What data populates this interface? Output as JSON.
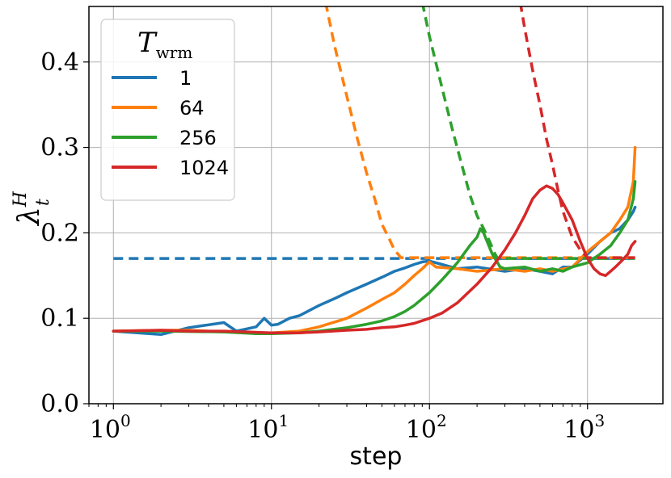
{
  "chart_data": {
    "type": "line",
    "xlabel": "step",
    "ylabel": {
      "base": "λ",
      "sup": "H",
      "sub": "t"
    },
    "x_scale": "log",
    "xlim": [
      0.7,
      3000
    ],
    "ylim": [
      0.0,
      0.465
    ],
    "x_ticks": [
      {
        "base": "10",
        "exp": "0"
      },
      {
        "base": "10",
        "exp": "1"
      },
      {
        "base": "10",
        "exp": "2"
      },
      {
        "base": "10",
        "exp": "3"
      }
    ],
    "y_ticks": [
      "0.0",
      "0.1",
      "0.2",
      "0.3",
      "0.4"
    ],
    "grid": true,
    "legend": {
      "title": {
        "main": "T",
        "sub": "wrm"
      },
      "placement": "top-left"
    },
    "series": [
      {
        "name": "1",
        "color": "#1f77b4",
        "points": [
          [
            1,
            0.085
          ],
          [
            2,
            0.081
          ],
          [
            3,
            0.089
          ],
          [
            5,
            0.095
          ],
          [
            6,
            0.085
          ],
          [
            8,
            0.09
          ],
          [
            9,
            0.1
          ],
          [
            10,
            0.092
          ],
          [
            11,
            0.093
          ],
          [
            13,
            0.1
          ],
          [
            15,
            0.103
          ],
          [
            20,
            0.115
          ],
          [
            25,
            0.123
          ],
          [
            30,
            0.13
          ],
          [
            40,
            0.14
          ],
          [
            50,
            0.148
          ],
          [
            60,
            0.155
          ],
          [
            70,
            0.159
          ],
          [
            80,
            0.163
          ],
          [
            90,
            0.166
          ],
          [
            100,
            0.167
          ],
          [
            120,
            0.163
          ],
          [
            150,
            0.158
          ],
          [
            200,
            0.16
          ],
          [
            300,
            0.155
          ],
          [
            400,
            0.158
          ],
          [
            500,
            0.155
          ],
          [
            600,
            0.152
          ],
          [
            700,
            0.16
          ],
          [
            800,
            0.16
          ],
          [
            900,
            0.168
          ],
          [
            1000,
            0.175
          ],
          [
            1200,
            0.19
          ],
          [
            1400,
            0.2
          ],
          [
            1600,
            0.205
          ],
          [
            1800,
            0.215
          ],
          [
            1950,
            0.225
          ],
          [
            2000,
            0.23
          ]
        ],
        "reference": {
          "style": "dashed",
          "points": [
            [
              1,
              0.17
            ],
            [
              2000,
              0.17
            ]
          ]
        }
      },
      {
        "name": "64",
        "color": "#ff7f0e",
        "points": [
          [
            1,
            0.085
          ],
          [
            2,
            0.086
          ],
          [
            3,
            0.086
          ],
          [
            5,
            0.084
          ],
          [
            8,
            0.083
          ],
          [
            10,
            0.083
          ],
          [
            15,
            0.085
          ],
          [
            20,
            0.09
          ],
          [
            30,
            0.1
          ],
          [
            40,
            0.112
          ],
          [
            50,
            0.122
          ],
          [
            60,
            0.13
          ],
          [
            70,
            0.14
          ],
          [
            80,
            0.15
          ],
          [
            90,
            0.158
          ],
          [
            100,
            0.166
          ],
          [
            110,
            0.16
          ],
          [
            150,
            0.158
          ],
          [
            200,
            0.155
          ],
          [
            300,
            0.158
          ],
          [
            400,
            0.155
          ],
          [
            500,
            0.158
          ],
          [
            600,
            0.155
          ],
          [
            800,
            0.16
          ],
          [
            1000,
            0.178
          ],
          [
            1200,
            0.19
          ],
          [
            1400,
            0.2
          ],
          [
            1600,
            0.215
          ],
          [
            1800,
            0.23
          ],
          [
            1950,
            0.26
          ],
          [
            2000,
            0.3
          ]
        ],
        "reference": {
          "style": "dashed",
          "points": [
            [
              22,
              0.47
            ],
            [
              25,
              0.42
            ],
            [
              30,
              0.36
            ],
            [
              35,
              0.31
            ],
            [
              40,
              0.27
            ],
            [
              45,
              0.24
            ],
            [
              50,
              0.21
            ],
            [
              55,
              0.195
            ],
            [
              60,
              0.18
            ],
            [
              66,
              0.171
            ],
            [
              2000,
              0.171
            ]
          ]
        }
      },
      {
        "name": "256",
        "color": "#2ca02c",
        "points": [
          [
            1,
            0.085
          ],
          [
            2,
            0.085
          ],
          [
            5,
            0.084
          ],
          [
            8,
            0.082
          ],
          [
            10,
            0.082
          ],
          [
            15,
            0.083
          ],
          [
            20,
            0.085
          ],
          [
            30,
            0.089
          ],
          [
            40,
            0.093
          ],
          [
            50,
            0.097
          ],
          [
            60,
            0.102
          ],
          [
            70,
            0.108
          ],
          [
            80,
            0.115
          ],
          [
            100,
            0.13
          ],
          [
            120,
            0.145
          ],
          [
            150,
            0.165
          ],
          [
            180,
            0.185
          ],
          [
            200,
            0.195
          ],
          [
            210,
            0.205
          ],
          [
            220,
            0.2
          ],
          [
            250,
            0.175
          ],
          [
            280,
            0.16
          ],
          [
            300,
            0.158
          ],
          [
            400,
            0.16
          ],
          [
            500,
            0.155
          ],
          [
            600,
            0.158
          ],
          [
            700,
            0.155
          ],
          [
            800,
            0.16
          ],
          [
            1000,
            0.165
          ],
          [
            1200,
            0.175
          ],
          [
            1400,
            0.185
          ],
          [
            1600,
            0.2
          ],
          [
            1800,
            0.215
          ],
          [
            1950,
            0.24
          ],
          [
            2000,
            0.26
          ]
        ],
        "reference": {
          "style": "dashed",
          "points": [
            [
              90,
              0.47
            ],
            [
              100,
              0.43
            ],
            [
              120,
              0.37
            ],
            [
              140,
              0.32
            ],
            [
              160,
              0.28
            ],
            [
              180,
              0.245
            ],
            [
              200,
              0.22
            ],
            [
              220,
              0.205
            ],
            [
              240,
              0.19
            ],
            [
              260,
              0.175
            ],
            [
              270,
              0.17
            ],
            [
              2000,
              0.17
            ]
          ]
        }
      },
      {
        "name": "1024",
        "color": "#d62728",
        "points": [
          [
            1,
            0.085
          ],
          [
            2,
            0.086
          ],
          [
            3,
            0.085
          ],
          [
            5,
            0.085
          ],
          [
            7,
            0.084
          ],
          [
            10,
            0.083
          ],
          [
            15,
            0.083
          ],
          [
            20,
            0.084
          ],
          [
            30,
            0.086
          ],
          [
            40,
            0.087
          ],
          [
            50,
            0.089
          ],
          [
            60,
            0.09
          ],
          [
            70,
            0.092
          ],
          [
            80,
            0.094
          ],
          [
            100,
            0.1
          ],
          [
            120,
            0.106
          ],
          [
            150,
            0.118
          ],
          [
            200,
            0.14
          ],
          [
            250,
            0.16
          ],
          [
            300,
            0.18
          ],
          [
            350,
            0.2
          ],
          [
            400,
            0.22
          ],
          [
            450,
            0.24
          ],
          [
            500,
            0.25
          ],
          [
            550,
            0.255
          ],
          [
            600,
            0.252
          ],
          [
            650,
            0.245
          ],
          [
            700,
            0.235
          ],
          [
            800,
            0.215
          ],
          [
            900,
            0.19
          ],
          [
            1000,
            0.17
          ],
          [
            1100,
            0.158
          ],
          [
            1200,
            0.152
          ],
          [
            1300,
            0.15
          ],
          [
            1400,
            0.155
          ],
          [
            1500,
            0.16
          ],
          [
            1600,
            0.165
          ],
          [
            1700,
            0.17
          ],
          [
            1800,
            0.175
          ],
          [
            1900,
            0.185
          ],
          [
            2000,
            0.19
          ]
        ],
        "reference": {
          "style": "dashed",
          "points": [
            [
              375,
              0.47
            ],
            [
              400,
              0.44
            ],
            [
              450,
              0.39
            ],
            [
              500,
              0.35
            ],
            [
              550,
              0.31
            ],
            [
              600,
              0.28
            ],
            [
              650,
              0.25
            ],
            [
              700,
              0.225
            ],
            [
              800,
              0.195
            ],
            [
              900,
              0.18
            ],
            [
              1000,
              0.171
            ],
            [
              2000,
              0.171
            ]
          ]
        }
      }
    ]
  }
}
